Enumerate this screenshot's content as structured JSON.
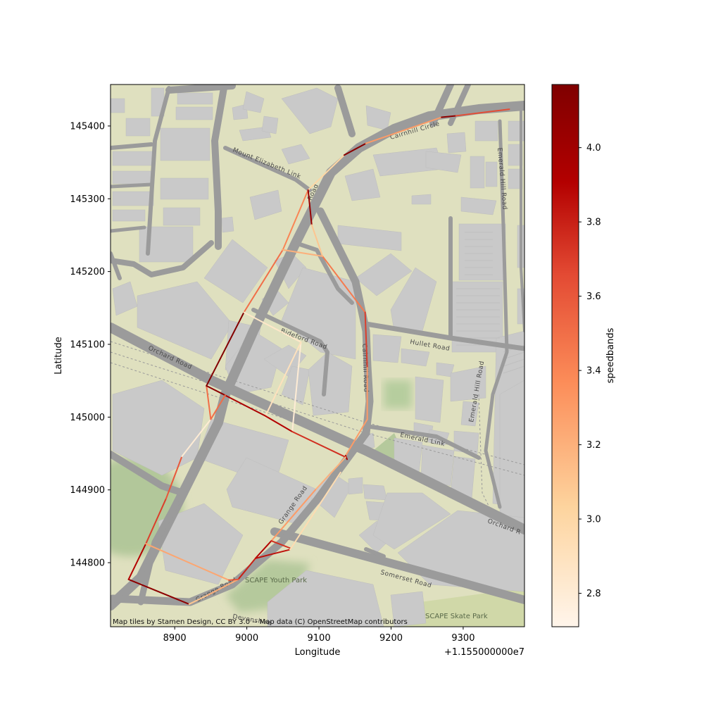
{
  "axes": {
    "xlabel": "Longitude",
    "ylabel": "Latitude",
    "x_offset_label": "+1.155000000e7",
    "xlim": [
      8811,
      9385
    ],
    "ylim": [
      144712,
      145457
    ],
    "xticks": [
      {
        "value": 8900,
        "label": "8900"
      },
      {
        "value": 9000,
        "label": "9000"
      },
      {
        "value": 9100,
        "label": "9100"
      },
      {
        "value": 9200,
        "label": "9200"
      },
      {
        "value": 9300,
        "label": "9300"
      }
    ],
    "yticks": [
      {
        "value": 144800,
        "label": "144800"
      },
      {
        "value": 144900,
        "label": "144900"
      },
      {
        "value": 145000,
        "label": "145000"
      },
      {
        "value": 145100,
        "label": "145100"
      },
      {
        "value": 145200,
        "label": "145200"
      },
      {
        "value": 145300,
        "label": "145300"
      },
      {
        "value": 145400,
        "label": "145400"
      }
    ]
  },
  "attribution": "Map tiles by Stamen Design, CC BY 3.0 -- Map data (C) OpenStreetMap contributors",
  "colorbar": {
    "label": "speedbands",
    "min": 2.71,
    "max": 4.17,
    "ticks": [
      {
        "value": 2.8,
        "label": "2.8"
      },
      {
        "value": 3.0,
        "label": "3.0"
      },
      {
        "value": 3.2,
        "label": "3.2"
      },
      {
        "value": 3.4,
        "label": "3.4"
      },
      {
        "value": 3.6,
        "label": "3.6"
      },
      {
        "value": 3.8,
        "label": "3.8"
      },
      {
        "value": 4.0,
        "label": "4.0"
      }
    ]
  },
  "street_labels": {
    "orchard_road_w": "Orchard Road",
    "orchard_road_e": "Orchard R",
    "mount_elizabeth": "Mount Elizabeth Link",
    "cairnhill_circle": "Cairnhill Circle",
    "cairnhill_road": "Cairnhill Road",
    "emerald_hill_road_n": "Emerald Hill Road",
    "emerald_hill_road_s": "Emerald Hill Road",
    "emerald_link": "Emerald Link",
    "hullet_road": "Hullet Road",
    "grange_road_n": "Grange Road",
    "grange_road_s": "Grange Road",
    "somerset_road": "Somerset Road",
    "scape_youth_park": "SCAPE Youth Park",
    "scape_skate_park": "SCAPE Skate Park",
    "faber_road": "Bideford Road",
    "road_n": "Road",
    "devonshire": "Devonshire"
  },
  "chart_data": {
    "type": "line",
    "title": "",
    "xlabel": "Longitude",
    "ylabel": "Latitude",
    "color_by": "speedbands",
    "segments": [
      {
        "x": [
          8836,
          8920
        ],
        "y": [
          144777,
          144743
        ],
        "v": 4.1
      },
      {
        "x": [
          8836,
          8860
        ],
        "y": [
          144777,
          144826
        ],
        "v": 3.9
      },
      {
        "x": [
          8860,
          8888
        ],
        "y": [
          144826,
          144888
        ],
        "v": 3.7
      },
      {
        "x": [
          8888,
          8910
        ],
        "y": [
          144888,
          144946
        ],
        "v": 3.6
      },
      {
        "x": [
          8910,
          8950
        ],
        "y": [
          144946,
          144997
        ],
        "v": 2.8
      },
      {
        "x": [
          8950,
          8944
        ],
        "y": [
          144997,
          145043
        ],
        "v": 3.5
      },
      {
        "x": [
          8944,
          8970
        ],
        "y": [
          145043,
          145030
        ],
        "v": 4.1
      },
      {
        "x": [
          8944,
          8996
        ],
        "y": [
          145043,
          145144
        ],
        "v": 4.15
      },
      {
        "x": [
          8996,
          9050
        ],
        "y": [
          145144,
          145230
        ],
        "v": 3.5
      },
      {
        "x": [
          9050,
          9085
        ],
        "y": [
          145230,
          145312
        ],
        "v": 3.4
      },
      {
        "x": [
          9085,
          9135
        ],
        "y": [
          145312,
          145360
        ],
        "v": 3.0
      },
      {
        "x": [
          9135,
          9165
        ],
        "y": [
          145360,
          145376
        ],
        "v": 4.12
      },
      {
        "x": [
          9165,
          9270
        ],
        "y": [
          145376,
          145412
        ],
        "v": 3.3
      },
      {
        "x": [
          9270,
          9290
        ],
        "y": [
          145412,
          145414
        ],
        "v": 4.1
      },
      {
        "x": [
          9290,
          9364
        ],
        "y": [
          145414,
          145423
        ],
        "v": 3.65
      },
      {
        "x": [
          9085,
          9090
        ],
        "y": [
          145312,
          145264
        ],
        "v": 4.05
      },
      {
        "x": [
          9090,
          9105
        ],
        "y": [
          145264,
          145221
        ],
        "v": 3.1
      },
      {
        "x": [
          9105,
          9164
        ],
        "y": [
          145221,
          145144
        ],
        "v": 3.45
      },
      {
        "x": [
          9164,
          9167
        ],
        "y": [
          145144,
          145068
        ],
        "v": 3.7
      },
      {
        "x": [
          9167,
          9167
        ],
        "y": [
          145068,
          144997
        ],
        "v": 3.3
      },
      {
        "x": [
          9167,
          9137
        ],
        "y": [
          144997,
          144947
        ],
        "v": 3.3
      },
      {
        "x": [
          9137,
          9139
        ],
        "y": [
          144947,
          144942
        ],
        "v": 4.0
      },
      {
        "x": [
          9049,
          9105
        ],
        "y": [
          145230,
          145221
        ],
        "v": 3.2
      },
      {
        "x": [
          8996,
          9075
        ],
        "y": [
          145144,
          145103
        ],
        "v": 2.85
      },
      {
        "x": [
          9075,
          9063
        ],
        "y": [
          145103,
          144980
        ],
        "v": 2.8
      },
      {
        "x": [
          9075,
          9025
        ],
        "y": [
          145103,
          145000
        ],
        "v": 2.9
      },
      {
        "x": [
          8970,
          9025
        ],
        "y": [
          145030,
          145002
        ],
        "v": 3.95
      },
      {
        "x": [
          9025,
          9063
        ],
        "y": [
          145002,
          144980
        ],
        "v": 3.9
      },
      {
        "x": [
          9063,
          9137
        ],
        "y": [
          144980,
          144945
        ],
        "v": 3.75
      },
      {
        "x": [
          8970,
          8950
        ],
        "y": [
          145030,
          144997
        ],
        "v": 3.5
      },
      {
        "x": [
          9137,
          9095
        ],
        "y": [
          144945,
          144900
        ],
        "v": 3.2
      },
      {
        "x": [
          9095,
          9034
        ],
        "y": [
          144900,
          144830
        ],
        "v": 3.3
      },
      {
        "x": [
          9034,
          9012
        ],
        "y": [
          144830,
          144806
        ],
        "v": 3.9
      },
      {
        "x": [
          9012,
          8988
        ],
        "y": [
          144806,
          144777
        ],
        "v": 3.8
      },
      {
        "x": [
          8988,
          8945
        ],
        "y": [
          144777,
          144755
        ],
        "v": 3.2
      },
      {
        "x": [
          8945,
          8920
        ],
        "y": [
          144755,
          144743
        ],
        "v": 3.1
      },
      {
        "x": [
          9012,
          9060
        ],
        "y": [
          144806,
          144818
        ],
        "v": 3.85
      },
      {
        "x": [
          9034,
          9060
        ],
        "y": [
          144830,
          144820
        ],
        "v": 3.75
      },
      {
        "x": [
          9060,
          9130
        ],
        "y": [
          144818,
          144924
        ],
        "v": 2.95
      },
      {
        "x": [
          8860,
          8975
        ],
        "y": [
          144826,
          144776
        ],
        "v": 3.25
      },
      {
        "x": [
          8975,
          8988
        ],
        "y": [
          144776,
          144777
        ],
        "v": 3.6
      }
    ]
  }
}
